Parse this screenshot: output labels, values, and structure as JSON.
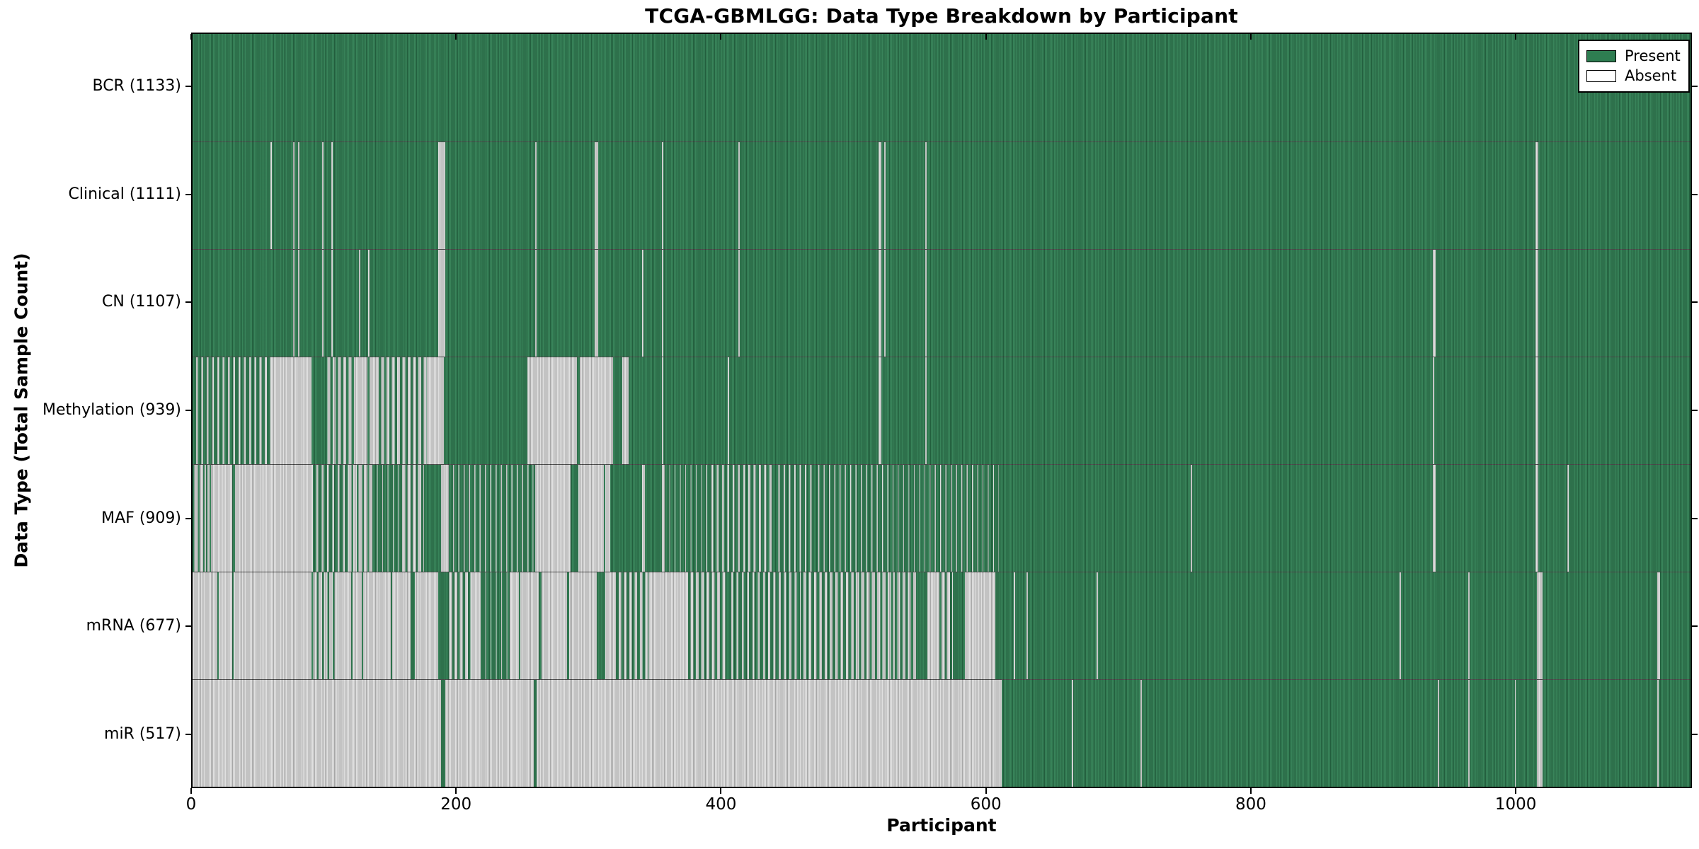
{
  "chart_data": {
    "type": "heatmap",
    "title": "TCGA-GBMLGG: Data Type Breakdown by Participant",
    "xlabel": "Participant",
    "ylabel": "Data Type (Total Sample Count)",
    "x_range": [
      0,
      1133
    ],
    "x_ticks": [
      0,
      200,
      400,
      600,
      800,
      1000
    ],
    "grid": false,
    "legend_position": "upper right",
    "legend": [
      {
        "label": "Present",
        "color": "#2e7d51"
      },
      {
        "label": "Absent",
        "color": "#ffffff"
      }
    ],
    "colors": {
      "present": "#2e7d51",
      "absent_fill": "#dedede",
      "axis": "#000000",
      "background": "#ffffff"
    },
    "segment_encoding": "segments are [start_participant, end_participant, state, present_fraction?] where state p=present, a=absent, m=mixed striping",
    "rows": [
      {
        "name": "BCR",
        "label": "BCR (1133)",
        "count": 1133,
        "segments": [
          [
            0,
            1133,
            "p"
          ]
        ]
      },
      {
        "name": "Clinical",
        "label": "Clinical (1111)",
        "count": 1111,
        "segments": [
          [
            0,
            59,
            "p"
          ],
          [
            59,
            60,
            "a"
          ],
          [
            60,
            76,
            "p"
          ],
          [
            76,
            77,
            "a"
          ],
          [
            77,
            80,
            "p"
          ],
          [
            80,
            81,
            "a"
          ],
          [
            81,
            98,
            "p"
          ],
          [
            98,
            99,
            "a"
          ],
          [
            99,
            105,
            "p"
          ],
          [
            105,
            106,
            "a"
          ],
          [
            106,
            186,
            "p"
          ],
          [
            186,
            191,
            "a"
          ],
          [
            191,
            259,
            "p"
          ],
          [
            259,
            260,
            "a"
          ],
          [
            260,
            304,
            "p"
          ],
          [
            304,
            307,
            "a"
          ],
          [
            307,
            355,
            "p"
          ],
          [
            355,
            356,
            "a"
          ],
          [
            356,
            413,
            "p"
          ],
          [
            413,
            414,
            "a"
          ],
          [
            414,
            519,
            "p"
          ],
          [
            519,
            521,
            "a"
          ],
          [
            521,
            523,
            "p"
          ],
          [
            523,
            524,
            "a"
          ],
          [
            524,
            554,
            "p"
          ],
          [
            554,
            555,
            "a"
          ],
          [
            555,
            1016,
            "p"
          ],
          [
            1016,
            1018,
            "a"
          ],
          [
            1018,
            1133,
            "p"
          ]
        ]
      },
      {
        "name": "CN",
        "label": "CN (1107)",
        "count": 1107,
        "segments": [
          [
            0,
            76,
            "p"
          ],
          [
            76,
            77,
            "a"
          ],
          [
            77,
            80,
            "p"
          ],
          [
            80,
            81,
            "a"
          ],
          [
            81,
            98,
            "p"
          ],
          [
            98,
            99,
            "a"
          ],
          [
            99,
            105,
            "p"
          ],
          [
            105,
            106,
            "a"
          ],
          [
            106,
            126,
            "p"
          ],
          [
            126,
            127,
            "a"
          ],
          [
            127,
            133,
            "p"
          ],
          [
            133,
            134,
            "a"
          ],
          [
            134,
            186,
            "p"
          ],
          [
            186,
            191,
            "a"
          ],
          [
            191,
            259,
            "p"
          ],
          [
            259,
            260,
            "a"
          ],
          [
            260,
            304,
            "p"
          ],
          [
            304,
            307,
            "a"
          ],
          [
            307,
            340,
            "p"
          ],
          [
            340,
            341,
            "a"
          ],
          [
            341,
            355,
            "p"
          ],
          [
            355,
            356,
            "a"
          ],
          [
            356,
            413,
            "p"
          ],
          [
            413,
            414,
            "a"
          ],
          [
            414,
            519,
            "p"
          ],
          [
            519,
            521,
            "a"
          ],
          [
            521,
            523,
            "p"
          ],
          [
            523,
            524,
            "a"
          ],
          [
            524,
            554,
            "p"
          ],
          [
            554,
            555,
            "a"
          ],
          [
            555,
            938,
            "p"
          ],
          [
            938,
            940,
            "a"
          ],
          [
            940,
            1016,
            "p"
          ],
          [
            1016,
            1018,
            "a"
          ],
          [
            1018,
            1133,
            "p"
          ]
        ]
      },
      {
        "name": "Methylation",
        "label": "Methylation (939)",
        "count": 939,
        "segments": [
          [
            0,
            60,
            "m",
            0.66
          ],
          [
            60,
            90,
            "a"
          ],
          [
            90,
            100,
            "p"
          ],
          [
            100,
            122,
            "m",
            0.5
          ],
          [
            122,
            132,
            "a"
          ],
          [
            132,
            134,
            "p"
          ],
          [
            134,
            141,
            "a"
          ],
          [
            141,
            177,
            "m",
            0.5
          ],
          [
            177,
            190,
            "a"
          ],
          [
            190,
            253,
            "p"
          ],
          [
            253,
            291,
            "a"
          ],
          [
            291,
            293,
            "p"
          ],
          [
            293,
            318,
            "a"
          ],
          [
            318,
            325,
            "p"
          ],
          [
            325,
            330,
            "a"
          ],
          [
            330,
            355,
            "p"
          ],
          [
            355,
            356,
            "a"
          ],
          [
            356,
            405,
            "p"
          ],
          [
            405,
            406,
            "a"
          ],
          [
            406,
            519,
            "p"
          ],
          [
            519,
            521,
            "a"
          ],
          [
            521,
            554,
            "p"
          ],
          [
            554,
            555,
            "a"
          ],
          [
            555,
            938,
            "p"
          ],
          [
            938,
            939,
            "a"
          ],
          [
            939,
            1016,
            "p"
          ],
          [
            1016,
            1018,
            "a"
          ],
          [
            1018,
            1133,
            "p"
          ]
        ]
      },
      {
        "name": "MAF",
        "label": "MAF (909)",
        "count": 909,
        "segments": [
          [
            0,
            9,
            "m",
            0.35
          ],
          [
            9,
            10,
            "a"
          ],
          [
            10,
            11,
            "p"
          ],
          [
            11,
            13,
            "a"
          ],
          [
            13,
            14,
            "p"
          ],
          [
            14,
            30,
            "a"
          ],
          [
            30,
            32,
            "p"
          ],
          [
            32,
            91,
            "a"
          ],
          [
            91,
            116,
            "m",
            0.7
          ],
          [
            116,
            136,
            "m",
            0.35
          ],
          [
            136,
            157,
            "m",
            0.85
          ],
          [
            157,
            175,
            "m",
            0.4
          ],
          [
            175,
            188,
            "p"
          ],
          [
            188,
            194,
            "a"
          ],
          [
            194,
            259,
            "m",
            0.8
          ],
          [
            259,
            286,
            "a"
          ],
          [
            286,
            292,
            "p"
          ],
          [
            292,
            311,
            "a"
          ],
          [
            311,
            312,
            "p"
          ],
          [
            312,
            316,
            "a"
          ],
          [
            316,
            340,
            "p"
          ],
          [
            340,
            342,
            "a"
          ],
          [
            342,
            355,
            "p"
          ],
          [
            355,
            357,
            "a"
          ],
          [
            357,
            390,
            "m",
            0.85
          ],
          [
            390,
            440,
            "m",
            0.65
          ],
          [
            440,
            470,
            "m",
            0.75
          ],
          [
            470,
            530,
            "m",
            0.8
          ],
          [
            530,
            610,
            "m",
            0.85
          ],
          [
            610,
            755,
            "p"
          ],
          [
            755,
            756,
            "a"
          ],
          [
            756,
            938,
            "p"
          ],
          [
            938,
            940,
            "a"
          ],
          [
            940,
            1016,
            "p"
          ],
          [
            1016,
            1018,
            "a"
          ],
          [
            1018,
            1040,
            "p"
          ],
          [
            1040,
            1041,
            "a"
          ],
          [
            1041,
            1133,
            "p"
          ]
        ]
      },
      {
        "name": "mRNA",
        "label": "mRNA (677)",
        "count": 677,
        "segments": [
          [
            0,
            19,
            "a"
          ],
          [
            19,
            20,
            "p"
          ],
          [
            20,
            30,
            "a"
          ],
          [
            30,
            31,
            "p"
          ],
          [
            31,
            90,
            "a"
          ],
          [
            90,
            110,
            "m",
            0.35
          ],
          [
            110,
            120,
            "a"
          ],
          [
            120,
            121,
            "p"
          ],
          [
            121,
            128,
            "a"
          ],
          [
            128,
            129,
            "p"
          ],
          [
            129,
            150,
            "a"
          ],
          [
            150,
            151,
            "p"
          ],
          [
            151,
            165,
            "a"
          ],
          [
            165,
            168,
            "p"
          ],
          [
            168,
            186,
            "a"
          ],
          [
            186,
            192,
            "p"
          ],
          [
            192,
            212,
            "m",
            0.45
          ],
          [
            212,
            218,
            "a"
          ],
          [
            218,
            240,
            "m",
            0.88
          ],
          [
            240,
            247,
            "a"
          ],
          [
            247,
            248,
            "p"
          ],
          [
            248,
            262,
            "a"
          ],
          [
            262,
            264,
            "p"
          ],
          [
            264,
            283,
            "a"
          ],
          [
            283,
            285,
            "p"
          ],
          [
            285,
            306,
            "a"
          ],
          [
            306,
            312,
            "p"
          ],
          [
            312,
            320,
            "a"
          ],
          [
            320,
            345,
            "m",
            0.55
          ],
          [
            345,
            375,
            "a"
          ],
          [
            375,
            405,
            "m",
            0.5
          ],
          [
            405,
            460,
            "m",
            0.65
          ],
          [
            460,
            500,
            "m",
            0.55
          ],
          [
            500,
            531,
            "m",
            0.4
          ],
          [
            531,
            547,
            "m",
            0.5
          ],
          [
            547,
            556,
            "p"
          ],
          [
            556,
            565,
            "a"
          ],
          [
            565,
            575,
            "m",
            0.4
          ],
          [
            575,
            584,
            "p"
          ],
          [
            584,
            607,
            "a"
          ],
          [
            607,
            621,
            "p"
          ],
          [
            621,
            622,
            "a"
          ],
          [
            622,
            631,
            "p"
          ],
          [
            631,
            632,
            "a"
          ],
          [
            632,
            684,
            "p"
          ],
          [
            684,
            685,
            "a"
          ],
          [
            685,
            913,
            "p"
          ],
          [
            913,
            914,
            "a"
          ],
          [
            914,
            965,
            "p"
          ],
          [
            965,
            966,
            "a"
          ],
          [
            966,
            1017,
            "p"
          ],
          [
            1017,
            1021,
            "a"
          ],
          [
            1021,
            1108,
            "p"
          ],
          [
            1108,
            1110,
            "a"
          ],
          [
            1110,
            1133,
            "p"
          ]
        ]
      },
      {
        "name": "miR",
        "label": "miR (517)",
        "count": 517,
        "segments": [
          [
            0,
            188,
            "a"
          ],
          [
            188,
            191,
            "p"
          ],
          [
            191,
            258,
            "a"
          ],
          [
            258,
            260,
            "p"
          ],
          [
            260,
            612,
            "a"
          ],
          [
            612,
            665,
            "p"
          ],
          [
            665,
            666,
            "a"
          ],
          [
            666,
            717,
            "p"
          ],
          [
            717,
            718,
            "a"
          ],
          [
            718,
            942,
            "p"
          ],
          [
            942,
            943,
            "a"
          ],
          [
            943,
            965,
            "p"
          ],
          [
            965,
            966,
            "a"
          ],
          [
            966,
            1000,
            "p"
          ],
          [
            1000,
            1001,
            "a"
          ],
          [
            1001,
            1017,
            "p"
          ],
          [
            1017,
            1021,
            "a"
          ],
          [
            1021,
            1108,
            "p"
          ],
          [
            1108,
            1109,
            "a"
          ],
          [
            1109,
            1133,
            "p"
          ]
        ]
      }
    ]
  }
}
